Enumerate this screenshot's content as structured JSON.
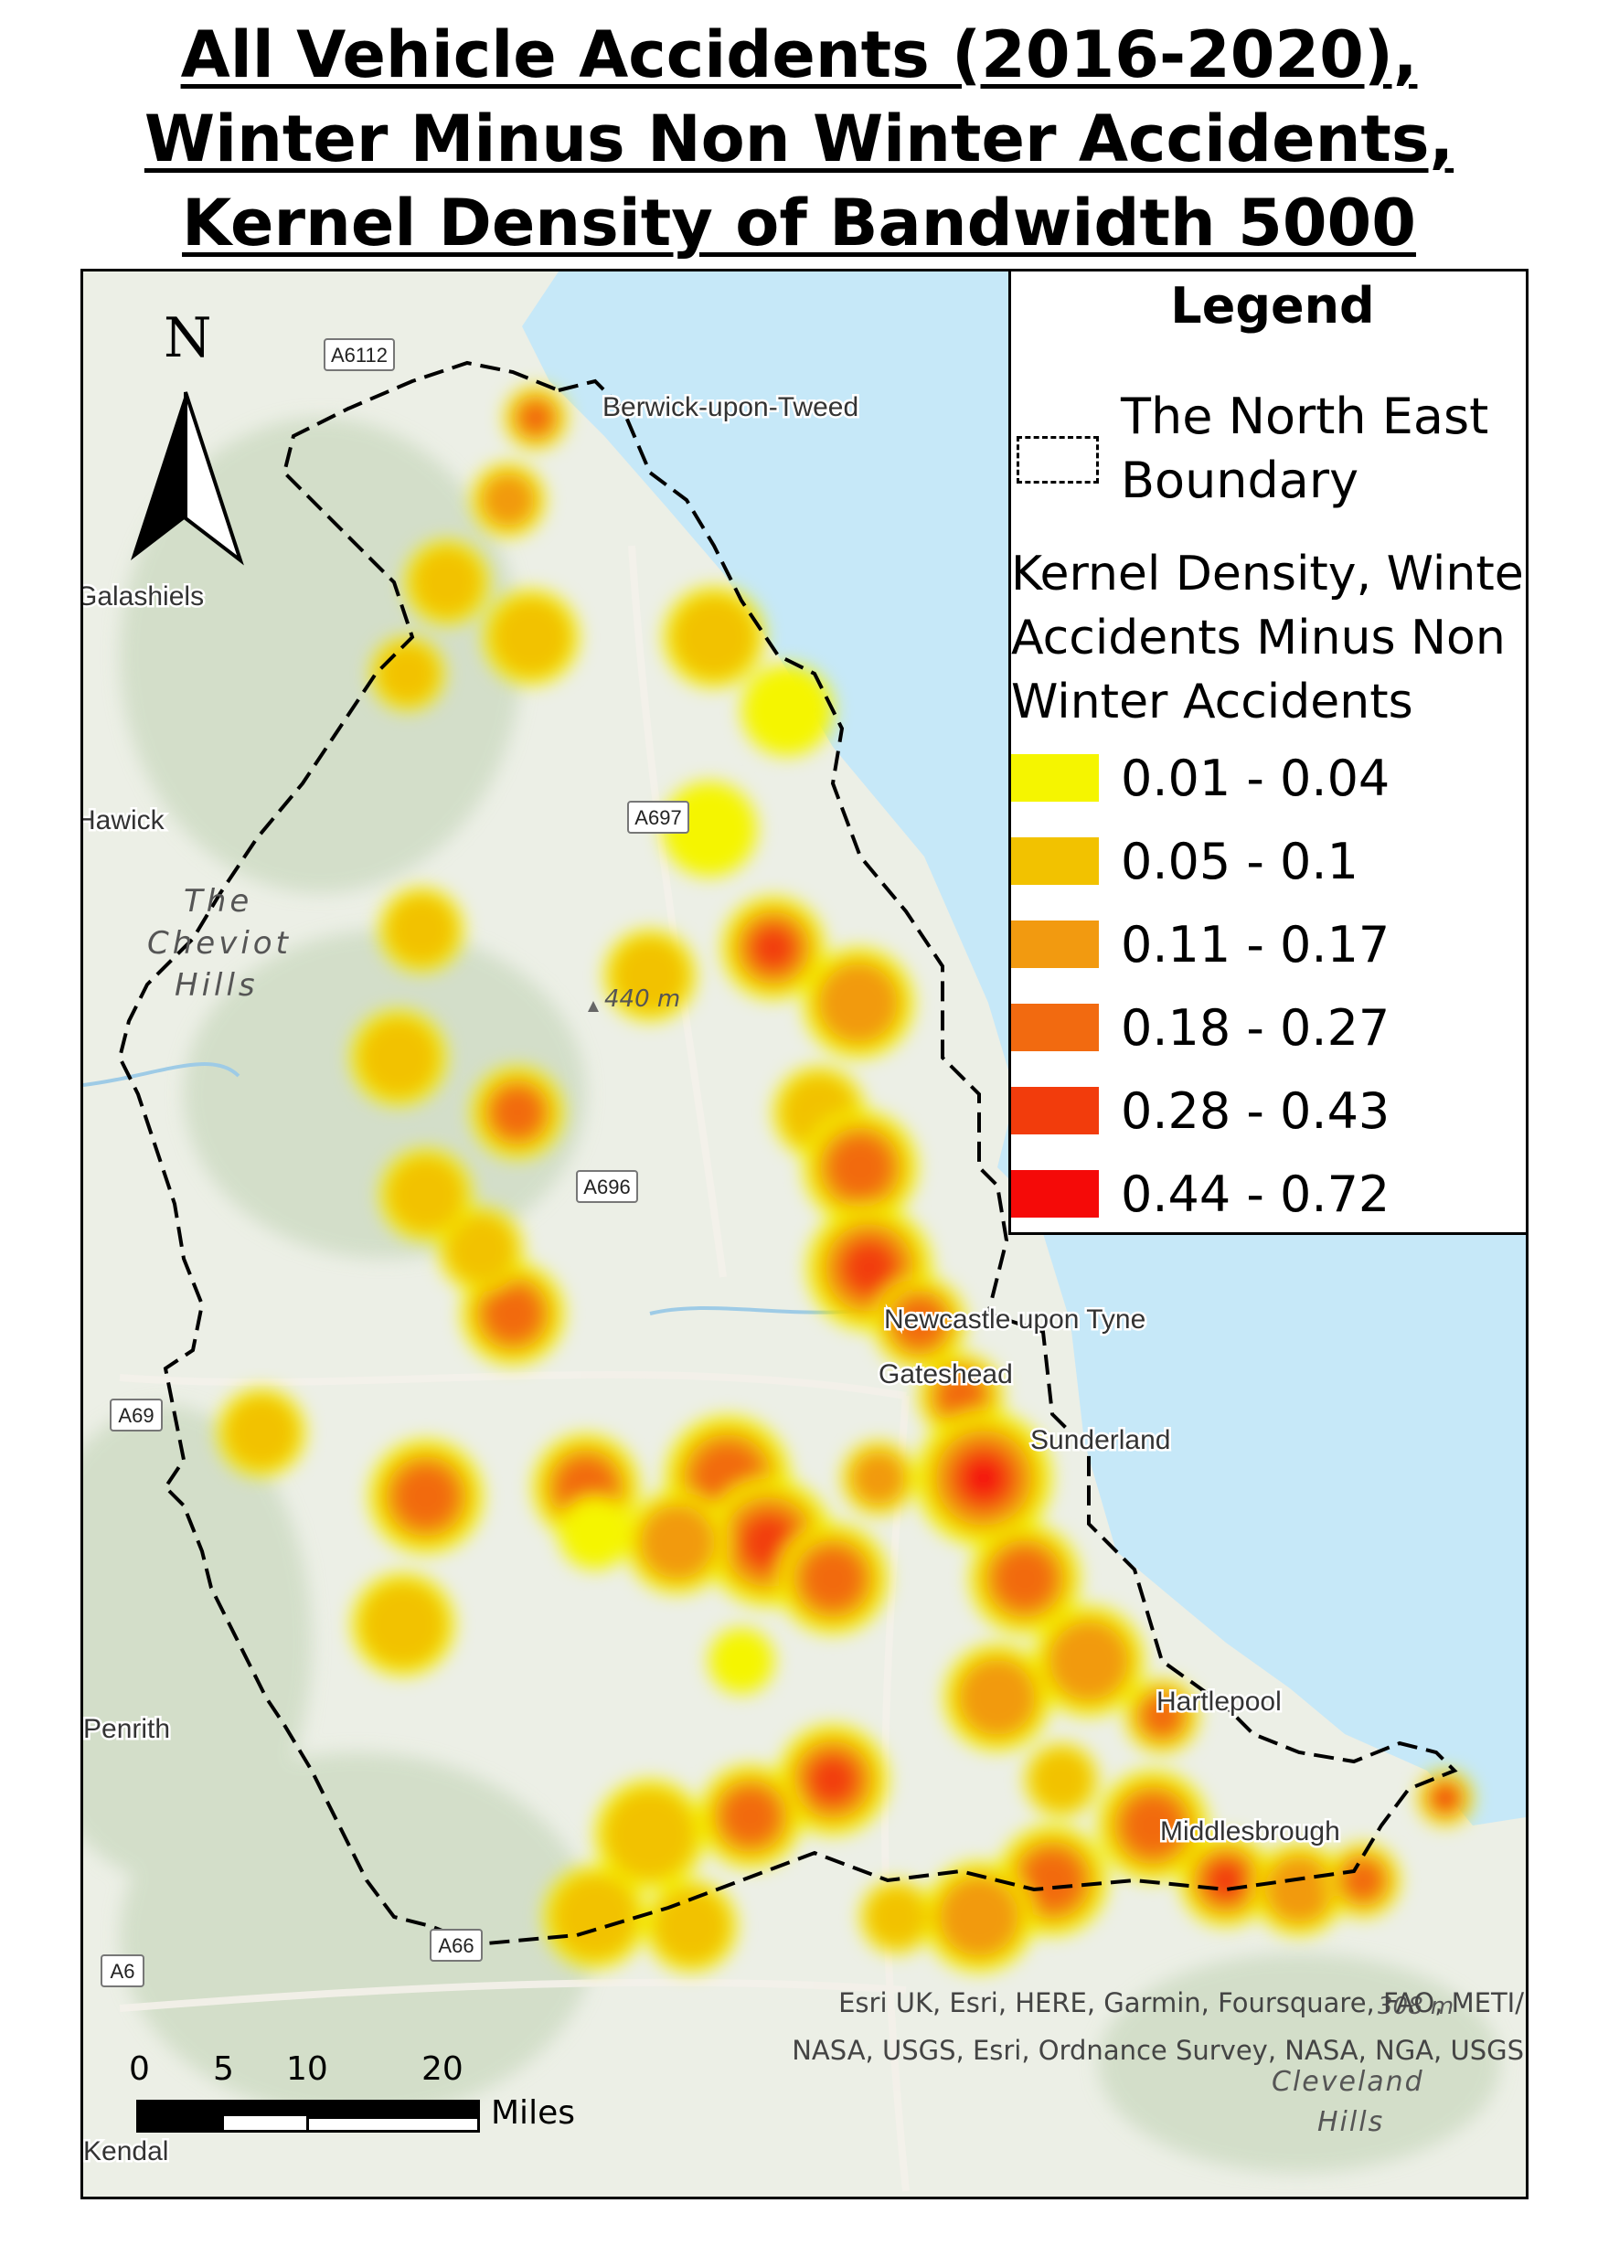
{
  "title_lines": [
    "All Vehicle Accidents (2016-2020),",
    "Winter Minus Non Winter Accidents,",
    "Kernel Density of Bandwidth 5000"
  ],
  "legend": {
    "title": "Legend",
    "boundary_label": "The North East Boundary",
    "kd_title": "Kernel Density, Winter Accidents Minus Non Winter Accidents",
    "classes": [
      {
        "label": "0.01 - 0.04",
        "color": "#f5f500"
      },
      {
        "label": "0.05 - 0.1",
        "color": "#f2c200"
      },
      {
        "label": "0.11 - 0.17",
        "color": "#f29a10"
      },
      {
        "label": "0.18 - 0.27",
        "color": "#f26a10"
      },
      {
        "label": "0.28 - 0.43",
        "color": "#f23c0c"
      },
      {
        "label": "0.44 - 0.72",
        "color": "#f50a08"
      }
    ]
  },
  "north_arrow": {
    "label": "N"
  },
  "scale_bar": {
    "ticks": [
      "0",
      "5",
      "10",
      "20"
    ],
    "unit": "Miles"
  },
  "attribution": "Esri UK, Esri, HERE, Garmin, Foursquare, FAO, METI/ NASA, USGS, Esri, Ordnance Survey, NASA, NGA, USGS",
  "place_labels": [
    "Berwick-upon-Tweed",
    "Galashiels",
    "Hawick",
    "Newcastle upon Tyne",
    "Gateshead",
    "Sunderland",
    "Hartlepool",
    "Middlesbrough",
    "Penrith",
    "Kendal"
  ],
  "road_labels": [
    "A6112",
    "A697",
    "A696",
    "A69",
    "A66",
    "A6"
  ],
  "terrain_labels": [
    "The Cheviot Hills",
    "440 m",
    "308 m",
    "Cleveland Hills"
  ],
  "colors": {
    "sea": "#c6e8f8",
    "land": "#ecefe6",
    "hills": "#cfdcc4",
    "boundary": "#000000"
  }
}
